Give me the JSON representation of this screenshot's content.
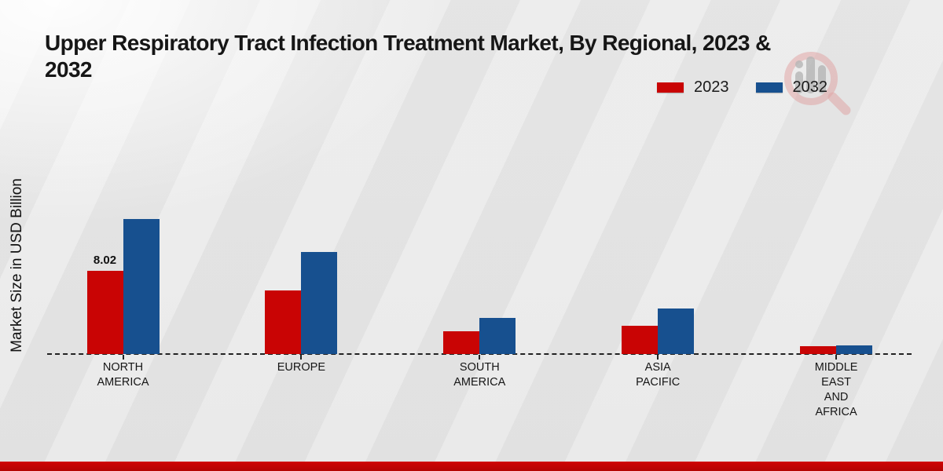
{
  "title_lines": [
    "Upper Respiratory Tract Infection Treatment Market, By Regional, 2023 &",
    "2032"
  ],
  "y_axis_label": "Market Size in USD Billion",
  "colors": {
    "series_2023": "#c90404",
    "series_2032": "#17508f",
    "footer_stripe": "#c00505",
    "background": "#e8e8e8",
    "text": "#161616"
  },
  "watermark": {
    "icon": "magnifier-bar-chart-logo"
  },
  "chart_data": {
    "type": "bar",
    "title": "Upper Respiratory Tract Infection Treatment Market, By Regional, 2023 & 2032",
    "xlabel": "",
    "ylabel": "Market Size in USD Billion",
    "ylim": [
      0,
      14
    ],
    "grid": false,
    "legend_position": "top-right",
    "baseline_style": "dashed",
    "categories": [
      "NORTH\nAMERICA",
      "EUROPE",
      "SOUTH\nAMERICA",
      "ASIA\nPACIFIC",
      "MIDDLE\nEAST\nAND\nAFRICA"
    ],
    "series": [
      {
        "name": "2023",
        "color": "#c90404",
        "values": [
          8.02,
          6.1,
          2.2,
          2.75,
          0.75
        ]
      },
      {
        "name": "2032",
        "color": "#17508f",
        "values": [
          13.0,
          9.85,
          3.5,
          4.4,
          0.85
        ]
      }
    ],
    "annotations": [
      {
        "series": "2023",
        "category_index": 0,
        "text": "8.02"
      }
    ]
  }
}
